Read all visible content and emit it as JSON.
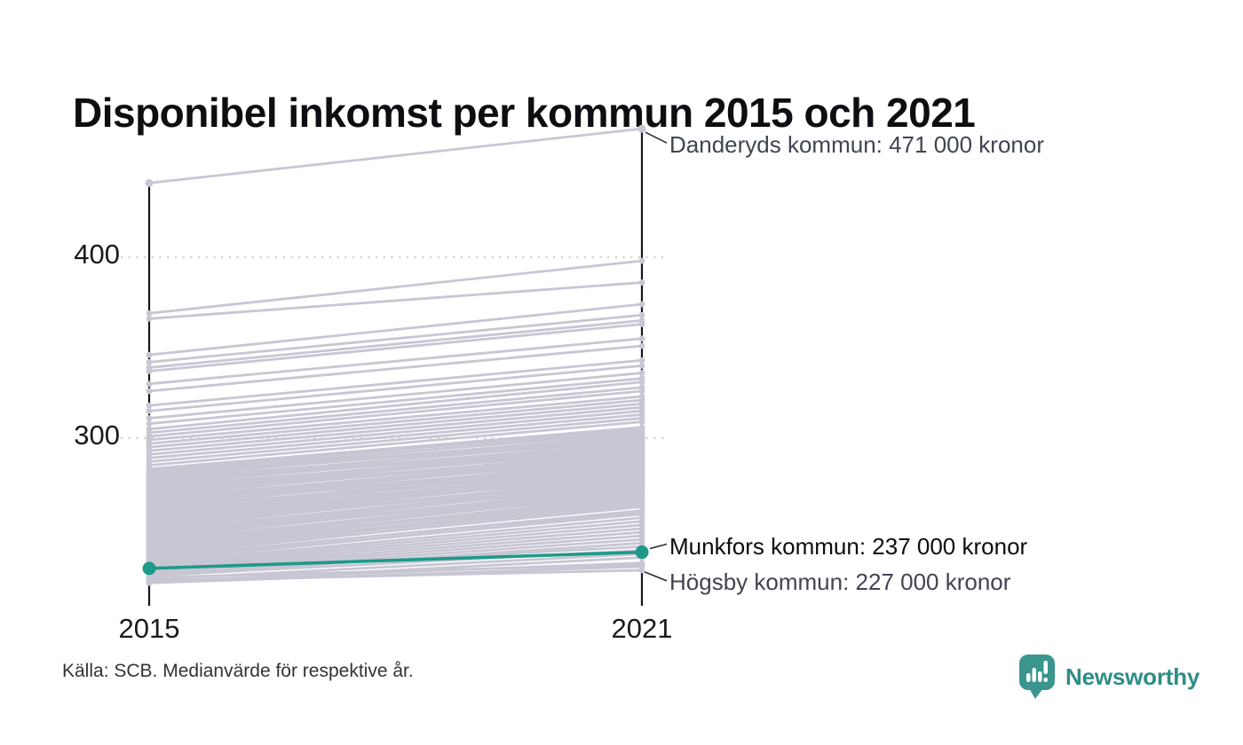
{
  "title": "Disponibel inkomst per kommun 2015 och 2021",
  "source": "Källa: SCB. Medianvärde för respektive år.",
  "branding": {
    "name": "Newsworthy"
  },
  "chart_data": {
    "type": "line",
    "subtype": "slope",
    "title": "Disponibel inkomst per kommun 2015 och 2021",
    "x_categories": [
      "2015",
      "2021"
    ],
    "y_ticks": [
      400,
      300
    ],
    "y_tick_labels": [
      "400",
      "300"
    ],
    "value_unit": "tusen kronor",
    "ylim": [
      215,
      480
    ],
    "grid": "dotted horizontal at 300 and 400",
    "highlight_series": {
      "name": "Munkfors kommun",
      "values": [
        228,
        237
      ],
      "label": "Munkfors kommun: 237 000 kronor"
    },
    "labeled_points": [
      {
        "name": "Danderyds kommun",
        "values": [
          441,
          471
        ],
        "label": "Danderyds kommun: 471 000 kronor",
        "emphasis": false,
        "label_offset": 1
      },
      {
        "name": "Munkfors kommun",
        "values": [
          228,
          237
        ],
        "label": "Munkfors kommun: 237 000 kronor",
        "emphasis": true,
        "label_offset": -24
      },
      {
        "name": "Högsby kommun",
        "values": [
          221,
          227
        ],
        "label": "Högsby kommun: 227 000 kronor",
        "emphasis": false,
        "label_offset": -4
      }
    ],
    "background_series": [
      [
        441,
        471
      ],
      [
        369,
        398
      ],
      [
        366,
        386
      ],
      [
        346,
        374
      ],
      [
        342,
        368
      ],
      [
        339,
        365
      ],
      [
        337,
        363
      ],
      [
        330,
        355
      ],
      [
        326,
        351
      ],
      [
        318,
        343
      ],
      [
        315,
        340
      ],
      [
        311,
        336
      ],
      [
        308,
        333
      ],
      [
        305,
        331
      ],
      [
        303,
        328
      ],
      [
        301,
        326
      ],
      [
        299,
        323
      ],
      [
        297,
        321
      ],
      [
        295,
        319
      ],
      [
        293,
        317
      ],
      [
        291,
        315
      ],
      [
        289,
        313
      ],
      [
        287,
        311
      ],
      [
        285,
        309
      ],
      [
        283,
        306
      ],
      [
        282,
        305
      ],
      [
        281,
        303
      ],
      [
        280,
        304
      ],
      [
        280,
        301
      ],
      [
        279,
        300
      ],
      [
        278,
        302
      ],
      [
        277,
        299
      ],
      [
        276,
        297
      ],
      [
        276,
        300
      ],
      [
        275,
        296
      ],
      [
        274,
        298
      ],
      [
        273,
        295
      ],
      [
        273,
        293
      ],
      [
        272,
        296
      ],
      [
        271,
        294
      ],
      [
        270,
        292
      ],
      [
        270,
        295
      ],
      [
        269,
        291
      ],
      [
        268,
        293
      ],
      [
        267,
        290
      ],
      [
        267,
        288
      ],
      [
        266,
        291
      ],
      [
        265,
        289
      ],
      [
        264,
        287
      ],
      [
        264,
        290
      ],
      [
        263,
        286
      ],
      [
        262,
        288
      ],
      [
        261,
        285
      ],
      [
        261,
        283
      ],
      [
        260,
        287
      ],
      [
        259,
        284
      ],
      [
        258,
        282
      ],
      [
        258,
        286
      ],
      [
        257,
        283
      ],
      [
        256,
        281
      ],
      [
        255,
        284
      ],
      [
        255,
        279
      ],
      [
        254,
        282
      ],
      [
        253,
        280
      ],
      [
        252,
        278
      ],
      [
        252,
        281
      ],
      [
        251,
        277
      ],
      [
        250,
        279
      ],
      [
        249,
        276
      ],
      [
        249,
        274
      ],
      [
        248,
        277
      ],
      [
        247,
        275
      ],
      [
        246,
        273
      ],
      [
        246,
        276
      ],
      [
        245,
        272
      ],
      [
        244,
        274
      ],
      [
        243,
        271
      ],
      [
        243,
        269
      ],
      [
        242,
        272
      ],
      [
        241,
        270
      ],
      [
        240,
        268
      ],
      [
        240,
        266
      ],
      [
        239,
        267
      ],
      [
        238,
        265
      ],
      [
        237,
        264
      ],
      [
        236,
        262
      ],
      [
        235,
        263
      ],
      [
        234,
        260
      ],
      [
        233,
        258
      ],
      [
        232,
        259
      ],
      [
        231,
        256
      ],
      [
        230,
        254
      ],
      [
        229,
        252
      ],
      [
        228,
        250
      ],
      [
        227,
        248
      ],
      [
        226,
        246
      ],
      [
        225,
        244
      ],
      [
        224,
        242
      ],
      [
        226,
        240
      ],
      [
        224,
        238
      ],
      [
        222,
        236
      ],
      [
        220,
        234
      ],
      [
        221,
        231
      ],
      [
        223,
        230
      ],
      [
        220,
        229
      ],
      [
        221,
        227
      ]
    ],
    "colors": {
      "highlight": "#1D9A88",
      "background_line": "#C8C6D3",
      "axis": "#16161A",
      "gridline": "#CFCFD4",
      "connector": "#2B2B33",
      "annotation_text": "#3F4551",
      "annotation_text_emphasis": "#0D0D0D",
      "brand": "#2E8D86",
      "brand_icon": "#3A958E"
    }
  }
}
